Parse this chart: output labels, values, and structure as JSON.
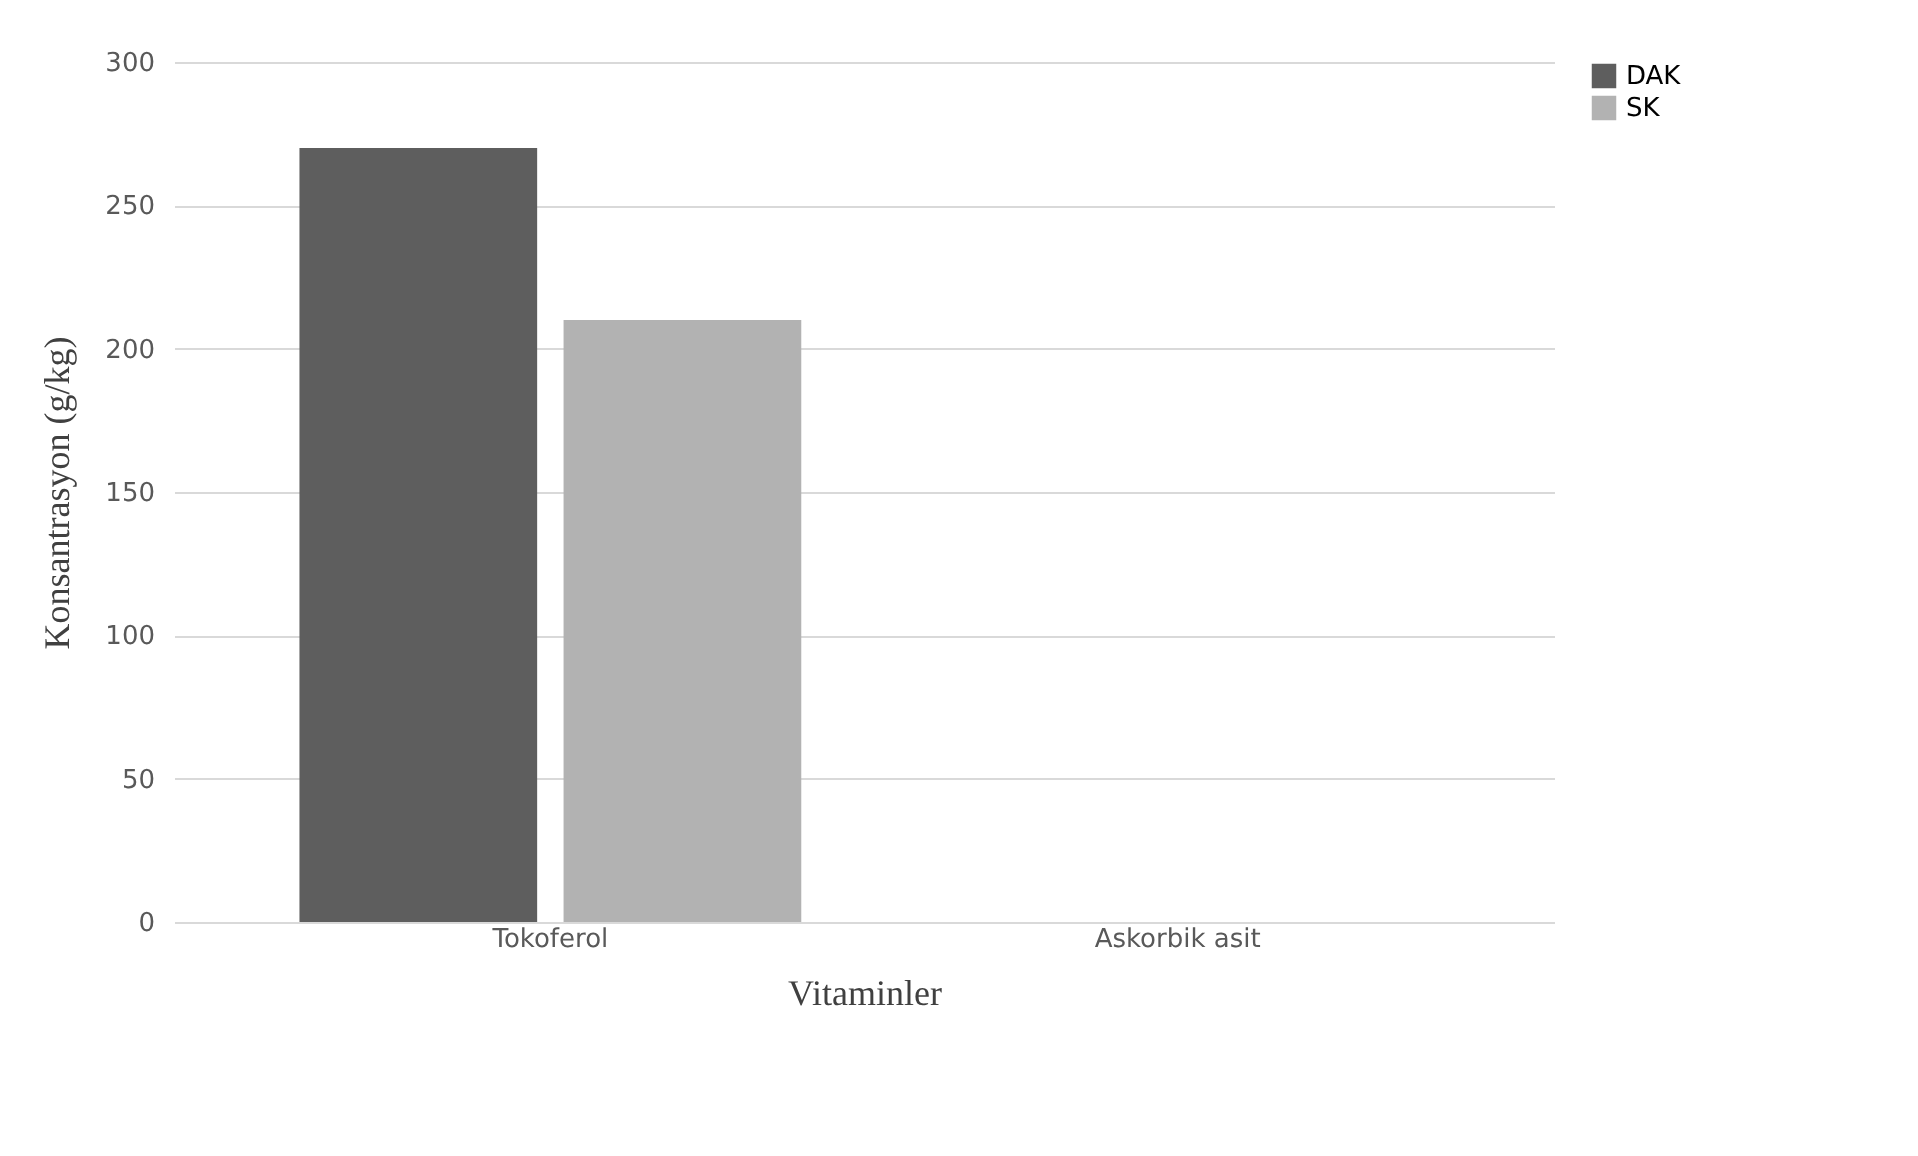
{
  "chart_data": {
    "type": "bar",
    "xlabel": "Vitaminler",
    "ylabel": "Konsantrasyon (g/kg)",
    "categories": [
      "Tokoferol",
      "Askorbik asit"
    ],
    "series": [
      {
        "name": "DAK",
        "color": "#5e5e5e",
        "values": [
          270,
          0
        ]
      },
      {
        "name": "SK",
        "color": "#b2b2b2",
        "values": [
          210,
          0
        ]
      }
    ],
    "ylim": [
      0,
      300
    ],
    "yticks": [
      0,
      50,
      100,
      150,
      200,
      250,
      300
    ],
    "grid": "y",
    "legend": "right"
  }
}
